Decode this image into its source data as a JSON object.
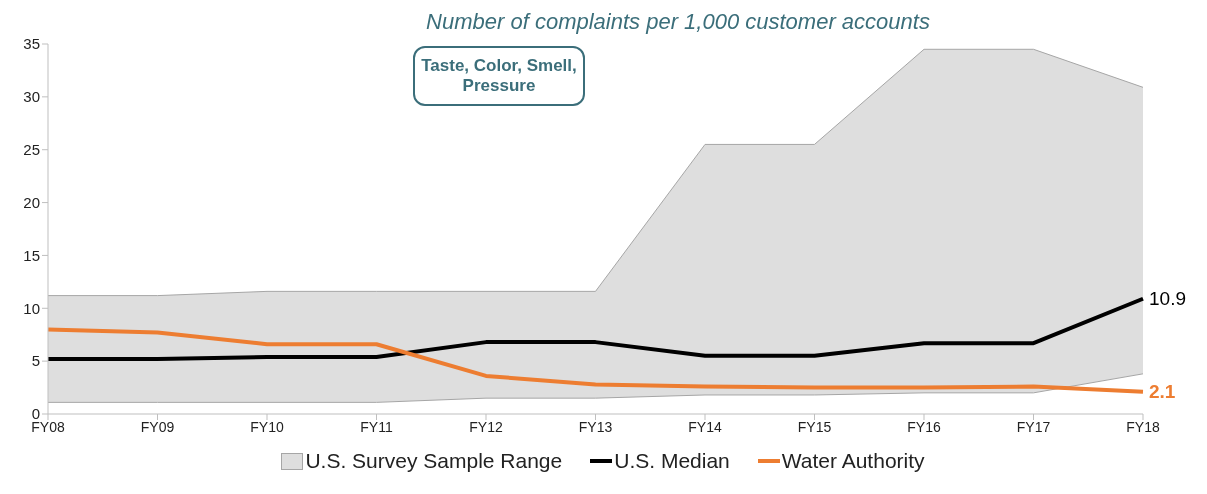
{
  "chart_data": {
    "type": "line",
    "title": "Number of complaints per 1,000 customer accounts",
    "categories": [
      "FY08",
      "FY09",
      "FY10",
      "FY11",
      "FY12",
      "FY13",
      "FY14",
      "FY15",
      "FY16",
      "FY17",
      "FY18"
    ],
    "series": [
      {
        "name": "U.S. Survey Sample Range",
        "type": "area",
        "color": "#dedede",
        "values": [
          11.2,
          11.2,
          11.6,
          11.6,
          11.6,
          11.6,
          25.5,
          25.5,
          34.5,
          34.5,
          30.9
        ]
      },
      {
        "type": "area",
        "color": "#ffffff",
        "values": [
          1.1,
          1.1,
          1.1,
          1.1,
          1.5,
          1.5,
          1.8,
          1.8,
          2.0,
          2.0,
          3.8
        ]
      },
      {
        "name": "U.S. Median",
        "color": "#000000",
        "values": [
          5.2,
          5.2,
          5.4,
          5.4,
          6.8,
          6.8,
          5.5,
          5.5,
          6.7,
          6.7,
          10.9
        ],
        "value_labels": [
          null,
          null,
          null,
          null,
          null,
          null,
          null,
          null,
          null,
          null,
          "10.9"
        ]
      },
      {
        "name": "Water Authority",
        "color": "#ed7d31",
        "values": [
          8.0,
          7.7,
          6.6,
          6.6,
          3.6,
          2.8,
          2.6,
          2.5,
          2.5,
          2.6,
          2.1
        ],
        "value_labels": [
          null,
          null,
          null,
          null,
          null,
          null,
          null,
          null,
          null,
          null,
          "2.1"
        ]
      }
    ],
    "ylim": [
      0,
      35
    ],
    "yticks": [
      0,
      5,
      10,
      15,
      20,
      25,
      30,
      35
    ],
    "grid": false,
    "legend": "bottom",
    "marker": "none",
    "line_style": "solid",
    "annotations": [
      "Taste, Color, Smell, Pressure"
    ]
  }
}
